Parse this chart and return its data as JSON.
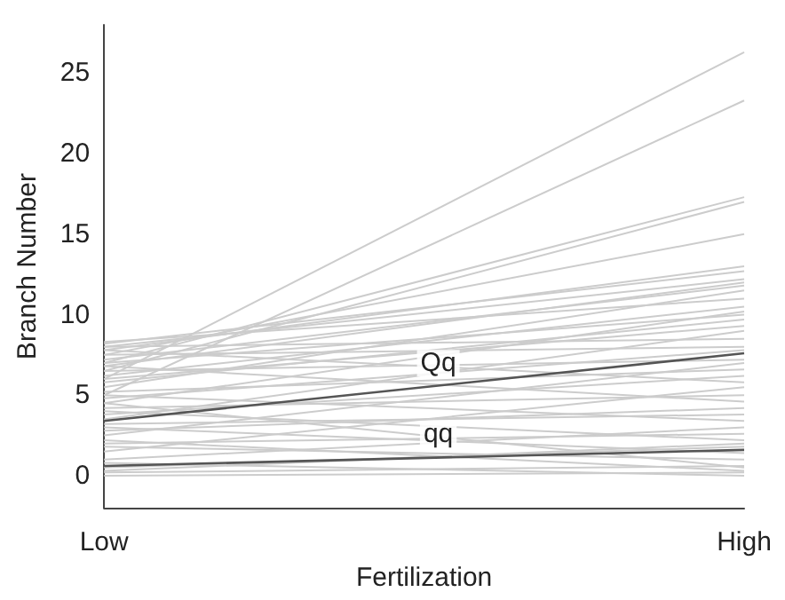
{
  "chart_data": {
    "type": "line",
    "xlabel": "Fertilization",
    "ylabel": "Branch Number",
    "categories": [
      "Low",
      "High"
    ],
    "ylim": [
      -2,
      28
    ],
    "yticks": [
      0,
      5,
      10,
      15,
      20,
      25
    ],
    "grid": false,
    "marker": "none",
    "line_style": "solid",
    "series": [
      {
        "color": "#cccccc",
        "values": [
          6.0,
          26.3
        ]
      },
      {
        "color": "#cccccc",
        "values": [
          5.0,
          23.3
        ]
      },
      {
        "color": "#cccccc",
        "values": [
          7.0,
          17.3
        ]
      },
      {
        "color": "#cccccc",
        "values": [
          6.5,
          17.0
        ]
      },
      {
        "color": "#cccccc",
        "values": [
          7.5,
          15.0
        ]
      },
      {
        "color": "#cccccc",
        "values": [
          7.8,
          13.0
        ]
      },
      {
        "color": "#cccccc",
        "values": [
          8.2,
          12.7
        ]
      },
      {
        "color": "#cccccc",
        "values": [
          8.0,
          12.2
        ]
      },
      {
        "color": "#cccccc",
        "values": [
          6.8,
          12.0
        ]
      },
      {
        "color": "#cccccc",
        "values": [
          7.2,
          11.8
        ]
      },
      {
        "color": "#cccccc",
        "values": [
          5.5,
          11.5
        ]
      },
      {
        "color": "#cccccc",
        "values": [
          8.3,
          11.0
        ]
      },
      {
        "color": "#cccccc",
        "values": [
          6.2,
          10.5
        ]
      },
      {
        "color": "#cccccc",
        "values": [
          4.5,
          10.2
        ]
      },
      {
        "color": "#cccccc",
        "values": [
          7.0,
          10.0
        ]
      },
      {
        "color": "#cccccc",
        "values": [
          5.8,
          9.7
        ]
      },
      {
        "color": "#cccccc",
        "values": [
          6.0,
          9.3
        ]
      },
      {
        "color": "#cccccc",
        "values": [
          3.5,
          9.0
        ]
      },
      {
        "color": "#cccccc",
        "values": [
          8.0,
          8.5
        ]
      },
      {
        "color": "#cccccc",
        "values": [
          7.5,
          8.0
        ]
      },
      {
        "color": "#cccccc",
        "values": [
          4.8,
          7.8
        ]
      },
      {
        "color": "#cccccc",
        "values": [
          6.5,
          7.2
        ]
      },
      {
        "color": "#cccccc",
        "values": [
          2.5,
          7.0
        ]
      },
      {
        "color": "#cccccc",
        "values": [
          5.2,
          6.6
        ]
      },
      {
        "color": "#cccccc",
        "values": [
          3.8,
          6.2
        ]
      },
      {
        "color": "#cccccc",
        "values": [
          7.8,
          5.8
        ]
      },
      {
        "color": "#cccccc",
        "values": [
          1.5,
          5.5
        ]
      },
      {
        "color": "#cccccc",
        "values": [
          4.2,
          5.0
        ]
      },
      {
        "color": "#cccccc",
        "values": [
          6.8,
          4.6
        ]
      },
      {
        "color": "#cccccc",
        "values": [
          2.8,
          4.2
        ]
      },
      {
        "color": "#cccccc",
        "values": [
          3.2,
          3.8
        ]
      },
      {
        "color": "#cccccc",
        "values": [
          5.0,
          3.4
        ]
      },
      {
        "color": "#cccccc",
        "values": [
          1.0,
          3.0
        ]
      },
      {
        "color": "#cccccc",
        "values": [
          2.0,
          2.6
        ]
      },
      {
        "color": "#cccccc",
        "values": [
          4.0,
          2.2
        ]
      },
      {
        "color": "#cccccc",
        "values": [
          0.5,
          1.8
        ]
      },
      {
        "color": "#cccccc",
        "values": [
          3.0,
          1.4
        ]
      },
      {
        "color": "#cccccc",
        "values": [
          1.8,
          1.0
        ]
      },
      {
        "color": "#cccccc",
        "values": [
          0.2,
          0.6
        ]
      },
      {
        "color": "#cccccc",
        "values": [
          2.2,
          0.3
        ]
      },
      {
        "color": "#cccccc",
        "values": [
          0.8,
          0.0
        ]
      },
      {
        "color": "#cccccc",
        "values": [
          0.0,
          0.2
        ]
      },
      {
        "color": "#cccccc",
        "values": [
          4.5,
          0.5
        ]
      },
      {
        "color": "#cccccc",
        "values": [
          0.3,
          2.0
        ]
      },
      {
        "name": "Qq",
        "color": "#555555",
        "values": [
          3.4,
          7.6
        ]
      },
      {
        "name": "qq",
        "color": "#555555",
        "values": [
          0.6,
          1.6
        ]
      }
    ]
  }
}
